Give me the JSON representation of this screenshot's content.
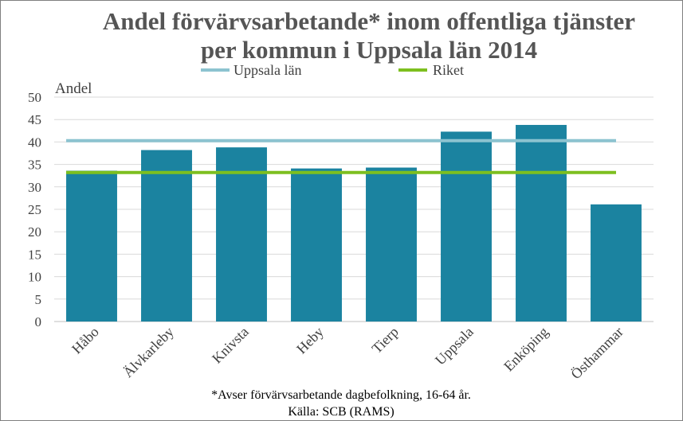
{
  "chart_data": {
    "type": "bar",
    "title_line1": "Andel förvärvsarbetande* inom offentliga tjänster",
    "title_line2": "per kommun i Uppsala län 2014",
    "ylabel": "Andel",
    "xlabel": "",
    "ylim": [
      0,
      50
    ],
    "ytick_step": 5,
    "grid": true,
    "categories": [
      "Håbo",
      "Älvkarleby",
      "Knivsta",
      "Heby",
      "Tierp",
      "Uppsala",
      "Enköping",
      "Östhammar"
    ],
    "series": [
      {
        "name": "Andel",
        "type": "bar",
        "values": [
          33.6,
          38.2,
          38.8,
          34.1,
          34.3,
          42.3,
          43.8,
          26.1
        ]
      }
    ],
    "reference_lines": [
      {
        "name": "Uppsala län",
        "value": 40.3
      },
      {
        "name": "Riket",
        "value": 33.2
      }
    ],
    "legend": {
      "placement": "top-center"
    },
    "footnote": "*Avser förvärvsarbetande dagbefolkning, 16-64 år.",
    "source": "Källa: SCB (RAMS)"
  },
  "colors": {
    "bar": "#1b83a0",
    "uppsala_lan": "#8cc3d0",
    "riket": "#7dbf1f",
    "grid": "#d9d9d9",
    "title": "#555555"
  }
}
